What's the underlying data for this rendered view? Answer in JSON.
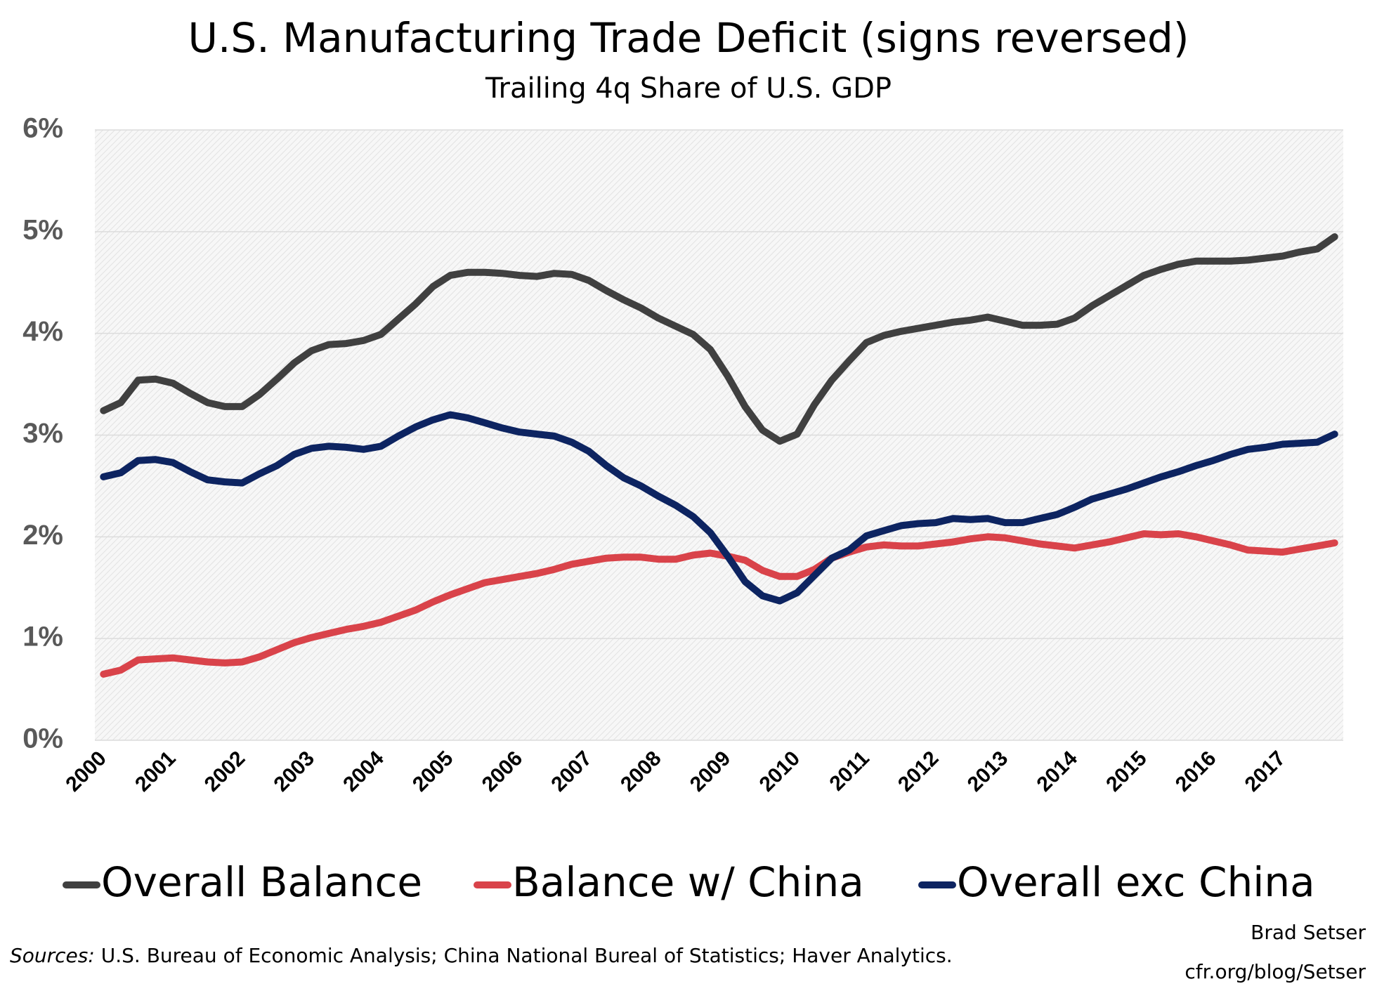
{
  "chart_data": {
    "type": "line",
    "title": "U.S. Manufacturing Trade Deficit (signs reversed)",
    "subtitle": "Trailing 4q Share of U.S. GDP",
    "categories": [
      "2000",
      null,
      null,
      null,
      "2001",
      null,
      null,
      null,
      "2002",
      null,
      null,
      null,
      "2003",
      null,
      null,
      null,
      "2004",
      null,
      null,
      null,
      "2005",
      null,
      null,
      null,
      "2006",
      null,
      null,
      null,
      "2007",
      null,
      null,
      null,
      "2008",
      null,
      null,
      null,
      "2009",
      null,
      null,
      null,
      "2010",
      null,
      null,
      null,
      "2011",
      null,
      null,
      null,
      "2012",
      null,
      null,
      null,
      "2013",
      null,
      null,
      null,
      "2014",
      null,
      null,
      null,
      "2015",
      null,
      null,
      null,
      "2016",
      null,
      null,
      null,
      "2017",
      null,
      null,
      null
    ],
    "series": [
      {
        "name": "Overall Balance",
        "color": "#404040",
        "values": [
          3.24,
          3.32,
          3.54,
          3.55,
          3.51,
          3.41,
          3.32,
          3.28,
          3.28,
          3.4,
          3.55,
          3.71,
          3.83,
          3.89,
          3.9,
          3.93,
          3.99,
          4.14,
          4.29,
          4.46,
          4.57,
          4.6,
          4.6,
          4.59,
          4.57,
          4.56,
          4.59,
          4.58,
          4.52,
          4.42,
          4.33,
          4.25,
          4.15,
          4.07,
          3.99,
          3.84,
          3.58,
          3.28,
          3.05,
          2.94,
          3.01,
          3.3,
          3.54,
          3.73,
          3.91,
          3.98,
          4.02,
          4.05,
          4.08,
          4.11,
          4.13,
          4.16,
          4.12,
          4.08,
          4.08,
          4.09,
          4.15,
          4.27,
          4.37,
          4.47,
          4.57,
          4.63,
          4.68,
          4.71,
          4.71,
          4.71,
          4.72,
          4.74,
          4.76,
          4.8,
          4.83,
          4.95
        ]
      },
      {
        "name": "Balance w/ China",
        "color": "#d9434a",
        "values": [
          0.65,
          0.69,
          0.79,
          0.8,
          0.81,
          0.79,
          0.77,
          0.76,
          0.77,
          0.82,
          0.89,
          0.96,
          1.01,
          1.05,
          1.09,
          1.12,
          1.16,
          1.22,
          1.28,
          1.36,
          1.43,
          1.49,
          1.55,
          1.58,
          1.61,
          1.64,
          1.68,
          1.73,
          1.76,
          1.79,
          1.8,
          1.8,
          1.78,
          1.78,
          1.82,
          1.84,
          1.81,
          1.77,
          1.67,
          1.61,
          1.61,
          1.68,
          1.79,
          1.85,
          1.9,
          1.92,
          1.91,
          1.91,
          1.93,
          1.95,
          1.98,
          2.0,
          1.99,
          1.96,
          1.93,
          1.91,
          1.89,
          1.92,
          1.95,
          1.99,
          2.03,
          2.02,
          2.03,
          2.0,
          1.96,
          1.92,
          1.87,
          1.86,
          1.85,
          1.88,
          1.91,
          1.94
        ]
      },
      {
        "name": "Overall exc China",
        "color": "#0d2461",
        "values": [
          2.59,
          2.63,
          2.75,
          2.76,
          2.73,
          2.64,
          2.56,
          2.54,
          2.53,
          2.62,
          2.7,
          2.81,
          2.87,
          2.89,
          2.88,
          2.86,
          2.89,
          2.99,
          3.08,
          3.15,
          3.2,
          3.17,
          3.12,
          3.07,
          3.03,
          3.01,
          2.99,
          2.93,
          2.84,
          2.7,
          2.58,
          2.5,
          2.4,
          2.31,
          2.2,
          2.04,
          1.81,
          1.56,
          1.42,
          1.37,
          1.45,
          1.62,
          1.79,
          1.87,
          2.01,
          2.06,
          2.11,
          2.13,
          2.14,
          2.18,
          2.17,
          2.18,
          2.14,
          2.14,
          2.18,
          2.22,
          2.29,
          2.37,
          2.42,
          2.47,
          2.53,
          2.59,
          2.64,
          2.7,
          2.75,
          2.81,
          2.86,
          2.88,
          2.91,
          2.92,
          2.93,
          3.01
        ]
      }
    ],
    "ylim": [
      0,
      6
    ],
    "yticks": [
      {
        "value": 0,
        "label": "0%"
      },
      {
        "value": 1,
        "label": "1%"
      },
      {
        "value": 2,
        "label": "2%"
      },
      {
        "value": 3,
        "label": "3%"
      },
      {
        "value": 4,
        "label": "4%"
      },
      {
        "value": 5,
        "label": "5%"
      },
      {
        "value": 6,
        "label": "6%"
      }
    ],
    "grid": true,
    "legend": "bottom",
    "sources_label": "Sources:",
    "sources": "U.S. Bureau of Economic Analysis; China National Bureal of Statistics; Haver Analytics.",
    "author": "Brad Setser",
    "website": "cfr.org/blog/Setser"
  }
}
